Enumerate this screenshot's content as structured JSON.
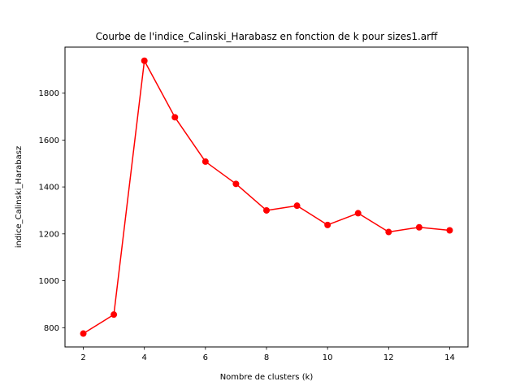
{
  "chart_data": {
    "type": "line",
    "title": "Courbe de l'indice_Calinski_Harabasz en fonction de k pour sizes1.arff",
    "xlabel": "Nombre de clusters (k)",
    "ylabel": "indice_Calinski_Harabasz",
    "x": [
      2,
      3,
      4,
      5,
      6,
      7,
      8,
      9,
      10,
      11,
      12,
      13,
      14
    ],
    "series": [
      {
        "values": [
          775,
          856,
          1938,
          1697,
          1508,
          1413,
          1300,
          1320,
          1238,
          1288,
          1208,
          1228,
          1215
        ],
        "color": "#ff0000",
        "marker": "circle"
      }
    ],
    "xlim": [
      1.4,
      14.6
    ],
    "ylim": [
      718,
      1996
    ],
    "xticks": [
      2,
      4,
      6,
      8,
      10,
      12,
      14
    ],
    "yticks": [
      800,
      1000,
      1200,
      1400,
      1600,
      1800
    ],
    "grid": false
  }
}
